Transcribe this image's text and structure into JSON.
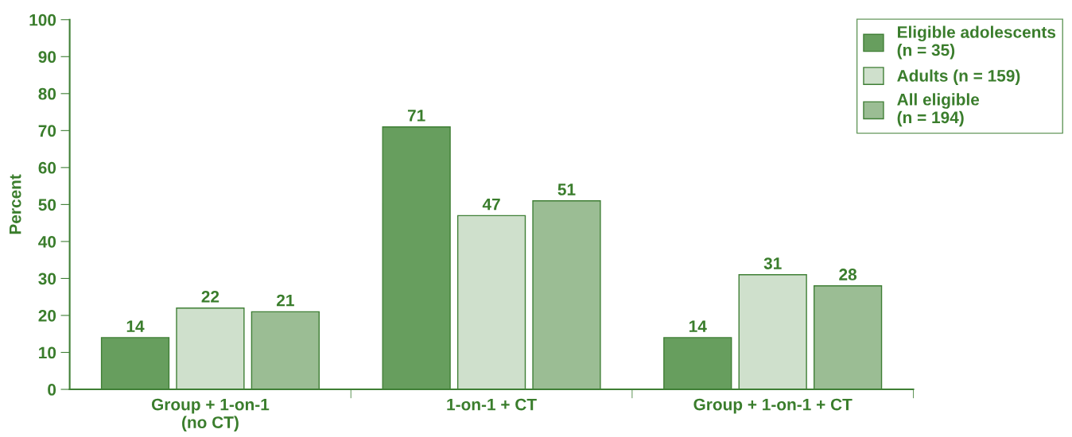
{
  "chart_data": {
    "type": "bar",
    "ylabel": "Percent",
    "categories": [
      "Group + 1-on-1\n(no CT)",
      "1-on-1 + CT",
      "Group + 1-on-1 + CT"
    ],
    "series": [
      {
        "name": "Eligible adolescents\n(n = 35)",
        "color": "#679e5e",
        "values": [
          14,
          71,
          14
        ]
      },
      {
        "name": "Adults (n = 159)",
        "color": "#cfe0cc",
        "values": [
          22,
          47,
          31
        ]
      },
      {
        "name": "All eligible\n(n = 194)",
        "color": "#9bbd94",
        "values": [
          21,
          51,
          28
        ]
      }
    ],
    "ylim": [
      0,
      100
    ],
    "yticks": [
      0,
      10,
      20,
      30,
      40,
      50,
      60,
      70,
      80,
      90,
      100
    ],
    "data_labels": true,
    "legend": "top right",
    "grid": false
  }
}
